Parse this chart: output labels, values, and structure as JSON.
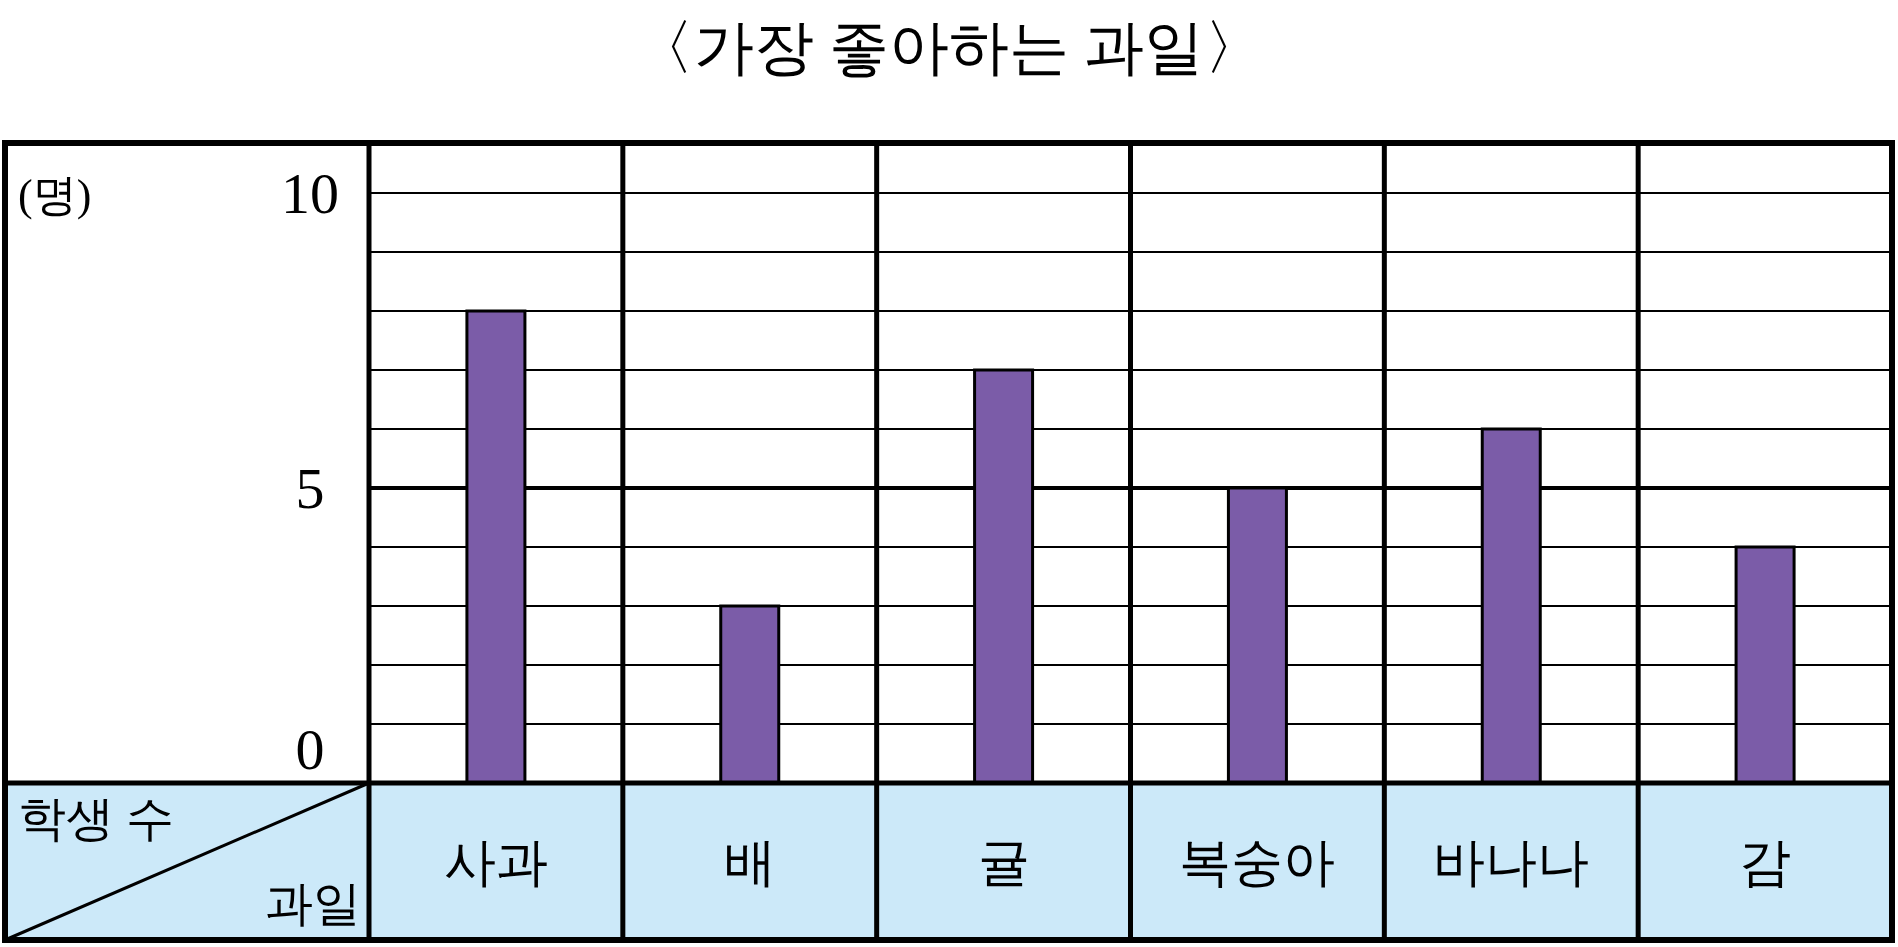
{
  "chart_data": {
    "type": "bar",
    "title": "〈가장 좋아하는 과일〉",
    "xlabel": "과일",
    "ylabel": "학생 수",
    "annotations": [
      "(명)"
    ],
    "categories": [
      "사과",
      "배",
      "귤",
      "복숭아",
      "바나나",
      "감"
    ],
    "values": [
      8,
      3,
      7,
      5,
      6,
      4
    ],
    "color": "#7b5ca8",
    "ylim": [
      0,
      10
    ],
    "yticks": [
      0,
      {
        "value": 1,
        "label": null
      },
      {
        "value": 2,
        "label": null
      },
      {
        "value": 3,
        "label": null
      },
      {
        "value": 4,
        "label": null
      },
      5,
      {
        "value": 6,
        "label": null
      },
      {
        "value": 7,
        "label": null
      },
      {
        "value": 8,
        "label": null
      },
      {
        "value": 9,
        "label": null
      },
      10
    ],
    "grid": "y",
    "ref_lines": [
      {
        "axis": "y",
        "value": 5,
        "color": "#000000"
      }
    ]
  }
}
